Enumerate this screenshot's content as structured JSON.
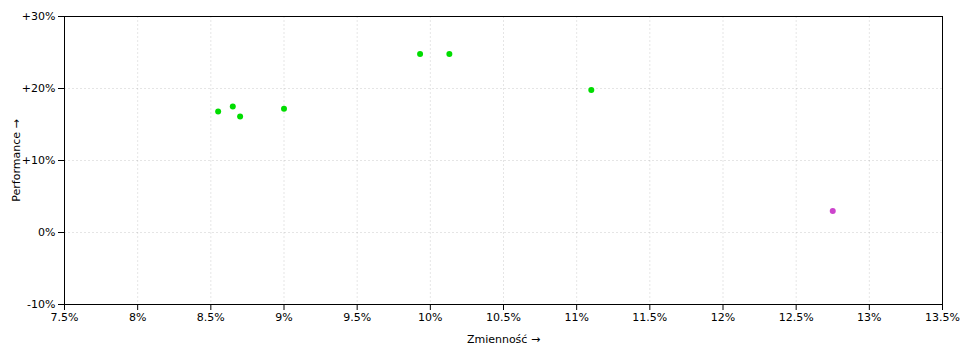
{
  "chart_data": {
    "type": "scatter",
    "xlabel": "Zmienność",
    "ylabel": "Performance",
    "xlim": [
      0.075,
      0.135
    ],
    "ylim": [
      -0.1,
      0.3
    ],
    "xticks": [
      {
        "value": 0.075,
        "label": "7.5%"
      },
      {
        "value": 0.08,
        "label": "8%"
      },
      {
        "value": 0.085,
        "label": "8.5%"
      },
      {
        "value": 0.09,
        "label": "9%"
      },
      {
        "value": 0.095,
        "label": "9.5%"
      },
      {
        "value": 0.1,
        "label": "10%"
      },
      {
        "value": 0.105,
        "label": "10.5%"
      },
      {
        "value": 0.11,
        "label": "11%"
      },
      {
        "value": 0.115,
        "label": "11.5%"
      },
      {
        "value": 0.12,
        "label": "12%"
      },
      {
        "value": 0.125,
        "label": "12.5%"
      },
      {
        "value": 0.13,
        "label": "13%"
      },
      {
        "value": 0.135,
        "label": "13.5%"
      }
    ],
    "yticks": [
      {
        "value": -0.1,
        "label": "-10%"
      },
      {
        "value": 0.0,
        "label": "0%"
      },
      {
        "value": 0.1,
        "label": "+10%"
      },
      {
        "value": 0.2,
        "label": "+20%"
      },
      {
        "value": 0.3,
        "label": "+30%"
      }
    ],
    "grid": true,
    "series": [
      {
        "color": "#00dd00",
        "x": [
          0.0855,
          0.0865,
          0.087,
          0.09,
          0.0993,
          0.1013,
          0.111
        ],
        "values": [
          0.168,
          0.175,
          0.161,
          0.172,
          0.248,
          0.248,
          0.198
        ]
      },
      {
        "color": "#cc44cc",
        "x": [
          0.1275
        ],
        "values": [
          0.03
        ]
      }
    ]
  }
}
